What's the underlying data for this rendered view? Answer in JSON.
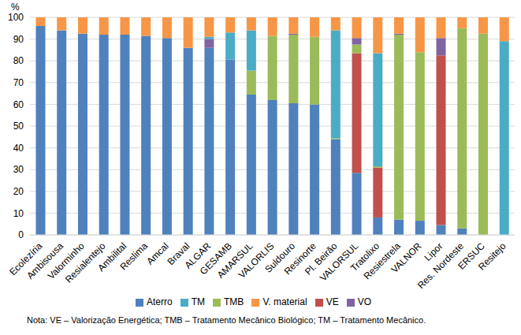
{
  "chart_data": {
    "type": "bar",
    "stacked": true,
    "y_label": "%",
    "note": "Nota: VE – Valorização Energética; TMB – Tratamento Mecânico Biológico; TM – Tratamento Mecânico.",
    "categories": [
      "Ecolezíria",
      "Ambisousa",
      "Valorminho",
      "Resialentejo",
      "Ambilital",
      "Reslima",
      "Amcal",
      "Braval",
      "ALGAR",
      "GESAMB",
      "AMARSUL",
      "VALORLIS",
      "Suldouro",
      "Resinorte",
      "Pl. Beirão",
      "VALORSUL",
      "Tratolixo",
      "Resiestrela",
      "VALNOR",
      "Lipor",
      "Res. Nordeste",
      "ERSUC",
      "Resitejo"
    ],
    "series": [
      {
        "name": "Aterro",
        "color": "#4f81bd",
        "values": [
          96,
          94,
          92.5,
          92,
          92,
          91.5,
          90.5,
          86,
          86,
          80.5,
          64.5,
          62,
          60.5,
          60,
          44,
          28.5,
          8,
          7,
          6.5,
          4.5,
          3,
          0,
          0
        ]
      },
      {
        "name": "VE",
        "color": "#c0504d",
        "values": [
          0,
          0,
          0,
          0,
          0,
          0,
          0,
          0,
          0,
          0,
          0,
          0,
          0,
          0,
          0,
          55,
          23,
          0,
          0,
          78,
          0,
          0,
          0
        ]
      },
      {
        "name": "TMB",
        "color": "#9bbb59",
        "values": [
          0,
          0,
          0,
          0,
          0,
          0,
          0,
          0,
          0,
          0,
          11,
          29.5,
          31.5,
          31,
          0.5,
          4,
          0.5,
          85,
          77.5,
          0,
          92,
          92.5,
          0
        ]
      },
      {
        "name": "VO",
        "color": "#8064a2",
        "values": [
          0,
          0,
          0,
          0,
          0,
          0,
          0,
          0,
          4,
          0,
          0,
          0,
          0.5,
          0,
          0,
          3,
          0,
          0.5,
          0,
          8,
          0,
          0,
          0
        ]
      },
      {
        "name": "TM",
        "color": "#4bacc6",
        "values": [
          0,
          0,
          0,
          0,
          0,
          0,
          0,
          0,
          1,
          12.5,
          18.5,
          0,
          0,
          0,
          49.5,
          0,
          52,
          0,
          0,
          0,
          0,
          0,
          89
        ]
      },
      {
        "name": "V. material",
        "color": "#f79646",
        "values": [
          4,
          6,
          7.5,
          8,
          8,
          8.5,
          9.5,
          14,
          9,
          7,
          6,
          8.5,
          7.5,
          9,
          6,
          9.5,
          16.5,
          7.5,
          16,
          9.5,
          5,
          7.5,
          11
        ]
      }
    ],
    "ylim": [
      0,
      100
    ],
    "yticks": [
      0,
      10,
      20,
      30,
      40,
      50,
      60,
      70,
      80,
      90,
      100
    ],
    "grid": true,
    "legend": "bottom"
  }
}
